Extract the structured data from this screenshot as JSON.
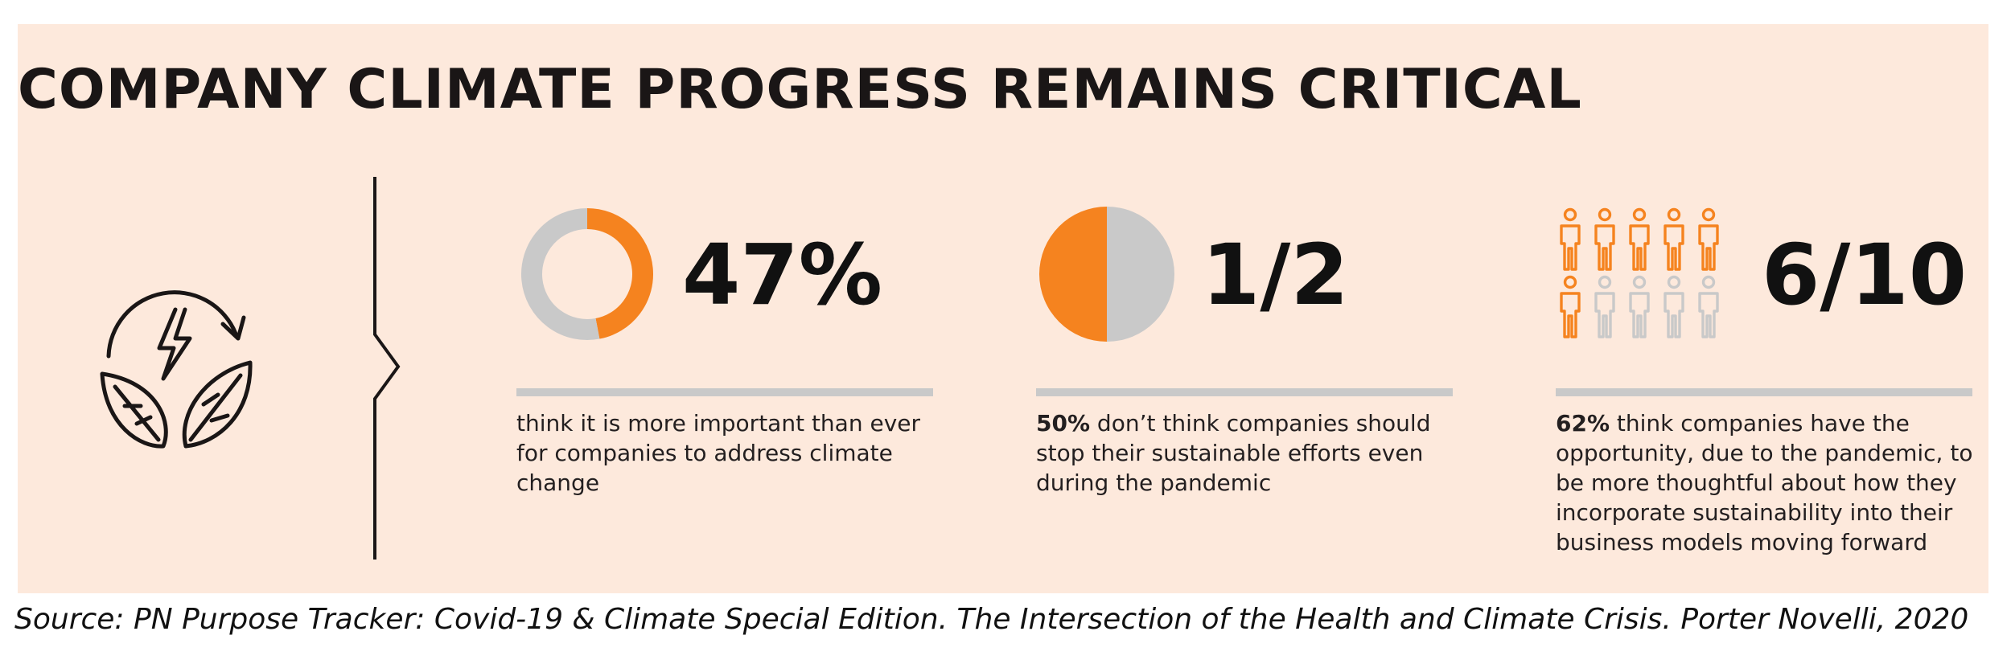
{
  "title": "COMPANY CLIMATE PROGRESS REMAINS CRITICAL",
  "colors": {
    "background": "#fde9dc",
    "accent": "#f5831f",
    "neutral": "#c9c9c9",
    "text": "#231f20"
  },
  "icons": {
    "feature": "leaf-energy-cycle-icon"
  },
  "chart_data": [
    {
      "type": "donut",
      "value_label": "47%",
      "values": [
        47,
        53
      ],
      "description": "think it is more important than ever for companies to address climate change"
    },
    {
      "type": "pie",
      "value_label": "1/2",
      "values": [
        50,
        50
      ],
      "description_bold": "50%",
      "description": " don’t think companies should stop their sustainable efforts even during the pandemic"
    },
    {
      "type": "pictograph",
      "value_label": "6/10",
      "highlighted": 6,
      "total": 10,
      "description_bold": "62%",
      "description": " think companies have the opportunity, due to the pandemic, to be more thoughtful about how they incorporate sustainability into their business models moving forward"
    }
  ],
  "source": "Source: PN  Purpose Tracker: Covid-19 & Climate Special Edition. The Intersection of the Health and Climate Crisis. Porter Novelli, 2020"
}
